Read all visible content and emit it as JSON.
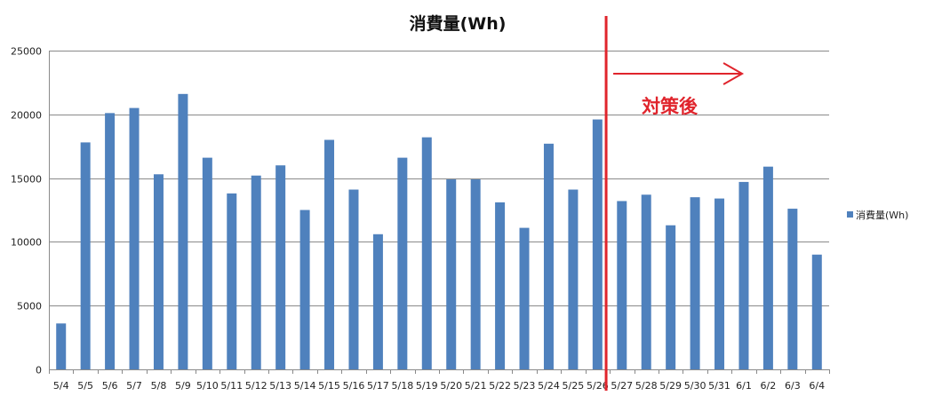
{
  "chart_data": {
    "type": "bar",
    "title": "消費量(Wh)",
    "xlabel": "",
    "ylabel": "",
    "ylim": [
      0,
      25000
    ],
    "yticks": [
      0,
      5000,
      10000,
      15000,
      20000,
      25000
    ],
    "grid": true,
    "legend_position": "right",
    "categories": [
      "5/4",
      "5/5",
      "5/6",
      "5/7",
      "5/8",
      "5/9",
      "5/10",
      "5/11",
      "5/12",
      "5/13",
      "5/14",
      "5/15",
      "5/16",
      "5/17",
      "5/18",
      "5/19",
      "5/20",
      "5/21",
      "5/22",
      "5/23",
      "5/24",
      "5/25",
      "5/26",
      "5/27",
      "5/28",
      "5/29",
      "5/30",
      "5/31",
      "6/1",
      "6/2",
      "6/3",
      "6/4"
    ],
    "series": [
      {
        "name": "消費量(Wh)",
        "color": "#4f81bd",
        "values": [
          3600,
          17800,
          20100,
          20500,
          15300,
          21600,
          16600,
          13800,
          15200,
          16000,
          12500,
          18000,
          14100,
          10600,
          16600,
          18200,
          14900,
          14900,
          13100,
          11100,
          17700,
          14100,
          19600,
          13200,
          13700,
          11300,
          13500,
          13400,
          14700,
          15900,
          12600,
          9000
        ]
      }
    ],
    "annotation": {
      "text": "対策後",
      "color": "#e0242c",
      "divider_after_category": "5/26"
    }
  }
}
